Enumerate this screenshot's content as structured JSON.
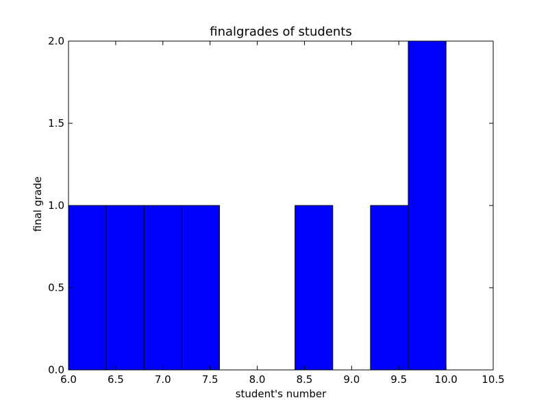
{
  "chart_data": {
    "type": "bar",
    "title": "finalgrades of students",
    "xlabel": "student's number",
    "ylabel": "final grade",
    "xlim": [
      6.0,
      10.5
    ],
    "ylim": [
      0.0,
      2.0
    ],
    "xticks": [
      "6.0",
      "6.5",
      "7.0",
      "7.5",
      "8.0",
      "8.5",
      "9.0",
      "9.5",
      "10.0",
      "10.5"
    ],
    "yticks": [
      "0.0",
      "0.5",
      "1.0",
      "1.5",
      "2.0"
    ],
    "bins": [
      {
        "start": 6.0,
        "end": 6.4,
        "value": 1
      },
      {
        "start": 6.4,
        "end": 6.8,
        "value": 1
      },
      {
        "start": 6.8,
        "end": 7.2,
        "value": 1
      },
      {
        "start": 7.2,
        "end": 7.6,
        "value": 1
      },
      {
        "start": 7.6,
        "end": 8.0,
        "value": 0
      },
      {
        "start": 8.0,
        "end": 8.4,
        "value": 0
      },
      {
        "start": 8.4,
        "end": 8.8,
        "value": 1
      },
      {
        "start": 8.8,
        "end": 9.2,
        "value": 0
      },
      {
        "start": 9.2,
        "end": 9.6,
        "value": 1
      },
      {
        "start": 9.6,
        "end": 10.0,
        "value": 2
      }
    ],
    "colors": {
      "bar_fill": "#0000ff",
      "bar_edge": "#000000",
      "frame": "#000000"
    }
  }
}
